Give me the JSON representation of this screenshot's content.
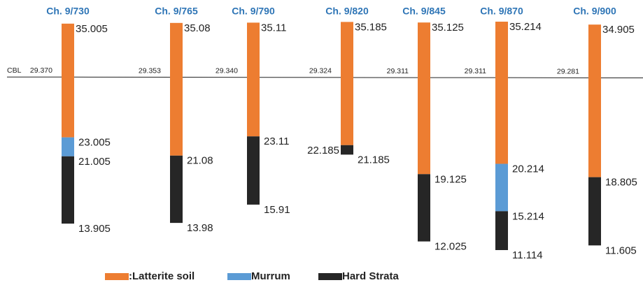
{
  "chart_data": {
    "type": "strata",
    "categories": [
      "Ch. 9/730",
      "Ch. 9/765",
      "Ch. 9/790",
      "Ch. 9/820",
      "Ch. 9/845",
      "Ch. 9/870",
      "Ch. 9/900"
    ],
    "top": [
      35.005,
      35.08,
      35.11,
      35.185,
      35.125,
      35.214,
      34.905
    ],
    "series": [
      {
        "name": ":Latterite soil",
        "color": "#ed7d31",
        "values": [
          23.005,
          21.08,
          23.11,
          22.185,
          19.125,
          20.214,
          18.805
        ]
      },
      {
        "name": "Murrum",
        "color": "#5b9bd5",
        "values": [
          21.005,
          null,
          null,
          null,
          null,
          15.214,
          null
        ]
      },
      {
        "name": "Hard Strata",
        "color": "#262626",
        "values": [
          13.905,
          13.98,
          15.91,
          21.185,
          12.025,
          11.114,
          11.605
        ]
      }
    ],
    "cbl_prefix": "CBL",
    "cbl": [
      29.37,
      29.353,
      29.34,
      29.324,
      29.311,
      29.311,
      29.281
    ],
    "cbl_labels": [
      "29.370",
      "29.353",
      "29.340",
      "29.324",
      "29.311",
      "29.311",
      "29.281"
    ]
  }
}
